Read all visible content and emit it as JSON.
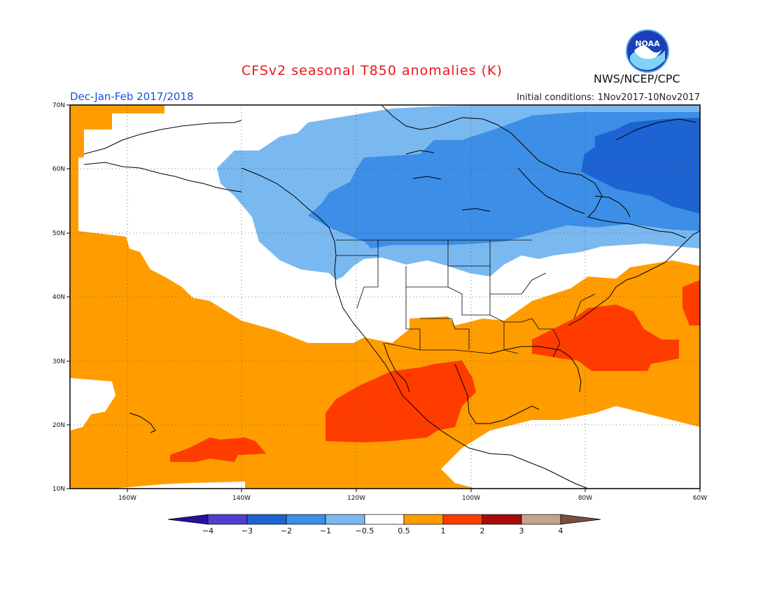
{
  "header": {
    "title": "CFSv2 seasonal T850 anomalies (K)",
    "season": "Dec-Jan-Feb 2017/2018",
    "initial_conditions": "Initial conditions: 1Nov2017-10Nov2017",
    "agency": "NWS/NCEP/CPC",
    "logo_text": "NOAA"
  },
  "map": {
    "lon_range": [
      -170,
      -60
    ],
    "lat_range": [
      10,
      70
    ],
    "lon_ticks": [
      "160W",
      "140W",
      "120W",
      "100W",
      "80W",
      "60W"
    ],
    "lat_ticks": [
      "70N",
      "60N",
      "50N",
      "40N",
      "30N",
      "20N",
      "10N"
    ]
  },
  "colorbar": {
    "labels": [
      "-4",
      "-3",
      "-2",
      "-1",
      "-0.5",
      "0.5",
      "1",
      "2",
      "3",
      "4"
    ],
    "colors": [
      "#2a0f9e",
      "#4f3fd0",
      "#1d63d1",
      "#3c8ee6",
      "#7ab8f0",
      "#ffffff",
      "#ff9d00",
      "#ff3c00",
      "#a80c0c",
      "#c7a28f",
      "#7a4f3f"
    ]
  },
  "colors": {
    "warm1": "#ff9d00",
    "warm2": "#ff3c00",
    "cool1": "#7ab8f0",
    "cool2": "#3c8ee6",
    "cool3": "#1d63d1"
  }
}
